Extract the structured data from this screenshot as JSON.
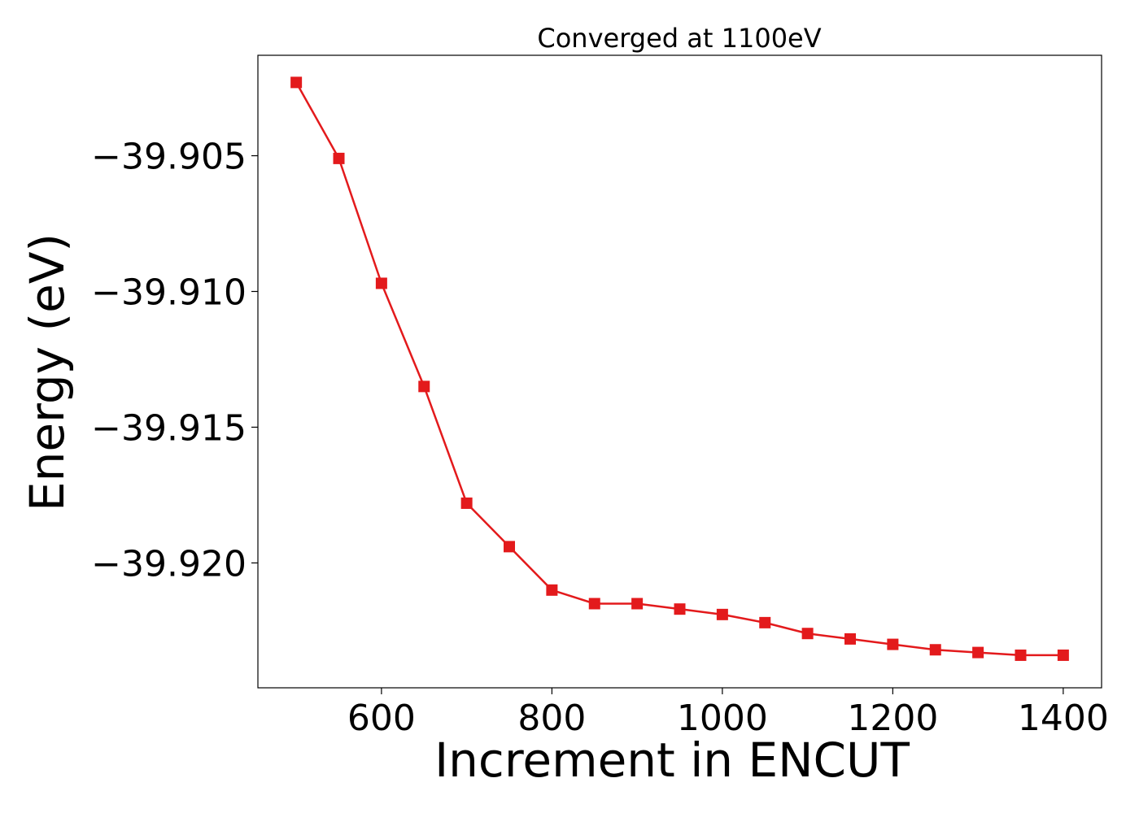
{
  "chart_data": {
    "type": "line",
    "title": "Converged at 1100eV",
    "xlabel": "Increment in ENCUT",
    "ylabel": "Energy (eV)",
    "xlim": [
      455,
      1445
    ],
    "ylim": [
      -39.9246,
      -39.9013
    ],
    "xticks": [
      600,
      800,
      1000,
      1200,
      1400
    ],
    "xtick_labels": [
      "600",
      "800",
      "1000",
      "1200",
      "1400"
    ],
    "yticks": [
      -39.905,
      -39.91,
      -39.915,
      -39.92
    ],
    "ytick_labels": [
      "−39.905",
      "−39.910",
      "−39.915",
      "−39.920"
    ],
    "grid": false,
    "series": [
      {
        "color": "#e31a1c",
        "marker": "square",
        "x": [
          500,
          550,
          600,
          650,
          700,
          750,
          800,
          850,
          900,
          950,
          1000,
          1050,
          1100,
          1150,
          1200,
          1250,
          1300,
          1350,
          1400
        ],
        "y": [
          -39.9023,
          -39.9051,
          -39.9097,
          -39.9135,
          -39.9178,
          -39.9194,
          -39.921,
          -39.9215,
          -39.9215,
          -39.9217,
          -39.9219,
          -39.9222,
          -39.9226,
          -39.9228,
          -39.923,
          -39.9232,
          -39.9233,
          -39.9234,
          -39.9234
        ]
      }
    ]
  }
}
